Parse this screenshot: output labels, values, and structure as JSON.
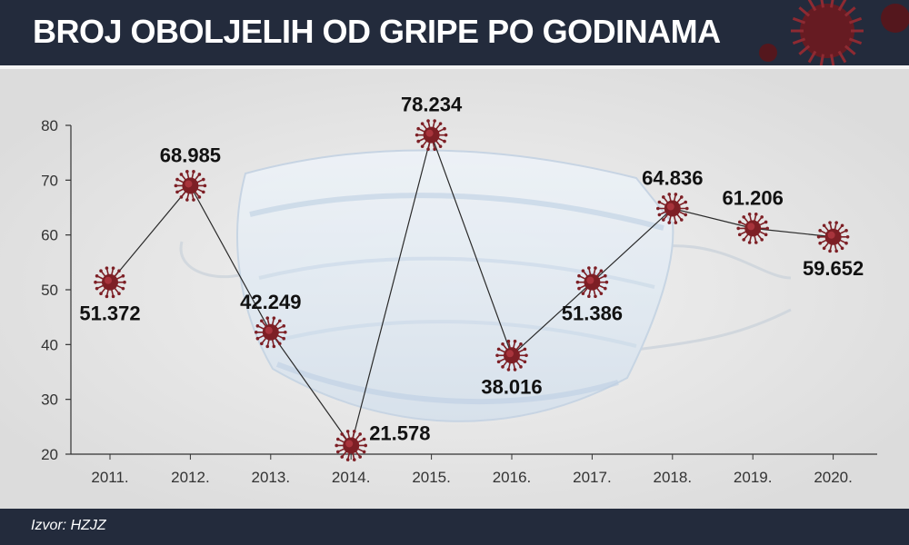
{
  "header": {
    "title": "BROJ OBOLJELIH OD GRIPE PO GODINAMA"
  },
  "footer": {
    "source": "Izvor: HZJZ"
  },
  "colors": {
    "header_bg": "#232b3c",
    "virus": "#7d1f25",
    "line": "#2a2a2a",
    "axis": "#333333"
  },
  "chart_data": {
    "type": "line",
    "title": "BROJ OBOLJELIH OD GRIPE PO GODINAMA",
    "xlabel": "",
    "ylabel": "",
    "categories": [
      "2011.",
      "2012.",
      "2013.",
      "2014.",
      "2015.",
      "2016.",
      "2017.",
      "2018.",
      "2019.",
      "2020."
    ],
    "series": [
      {
        "values": [
          51.372,
          68.985,
          42.249,
          21.578,
          78.234,
          38.016,
          51.386,
          64.836,
          61.206,
          59.652
        ],
        "labels": [
          "51.372",
          "68.985",
          "42.249",
          "21.578",
          "78.234",
          "38.016",
          "51.386",
          "64.836",
          "61.206",
          "59.652"
        ],
        "label_positions": [
          "below",
          "above",
          "above",
          "right",
          "above",
          "below",
          "below",
          "above",
          "above",
          "below"
        ]
      }
    ],
    "yticks": [
      20,
      30,
      40,
      50,
      60,
      70,
      80
    ],
    "ylim": [
      20,
      80
    ],
    "grid": false,
    "marker": "virus"
  }
}
